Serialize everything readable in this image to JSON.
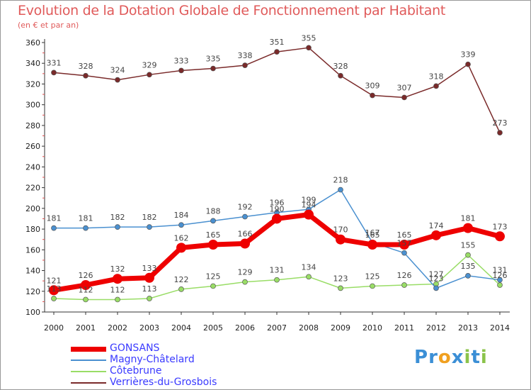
{
  "title": "Evolution de la Dotation Globale de Fonctionnement par Habitant",
  "subtitle": "(en € et par an)",
  "logo": {
    "text": "Proxiti",
    "letters": [
      "P",
      "r",
      "o",
      "x",
      "i",
      "t",
      "i"
    ],
    "colors": [
      "#3b8fd6",
      "#3b8fd6",
      "#f0a020",
      "#3b8fd6",
      "#8bc34a",
      "#3b8fd6",
      "#8bc34a"
    ]
  },
  "chart_data": {
    "type": "line",
    "x": [
      "2000",
      "2001",
      "2002",
      "2003",
      "2004",
      "2005",
      "2006",
      "2007",
      "2008",
      "2009",
      "2010",
      "2011",
      "2012",
      "2013",
      "2014"
    ],
    "ylim": [
      100,
      360
    ],
    "yticks": [
      100,
      120,
      140,
      160,
      180,
      200,
      220,
      240,
      260,
      280,
      300,
      320,
      340,
      360
    ],
    "grid": false,
    "legend_position": "bottom",
    "series": [
      {
        "name": "GONSANS",
        "color": "#ee0000",
        "values": [
          121,
          126,
          132,
          133,
          162,
          165,
          166,
          190,
          194,
          170,
          165,
          165,
          174,
          181,
          173
        ],
        "labels": [
          "121",
          "126",
          "132",
          "133",
          "162",
          "165",
          "166",
          "190",
          "194",
          "170",
          "165",
          "165",
          "174",
          "181",
          "173"
        ]
      },
      {
        "name": "Magny-Châtelard",
        "color": "#4a90d0",
        "values": [
          181,
          181,
          182,
          182,
          184,
          188,
          192,
          196,
          199,
          218,
          167,
          157,
          123,
          135,
          131
        ],
        "labels": [
          "181",
          "181",
          "182",
          "182",
          "184",
          "188",
          "192",
          "196",
          "199",
          "218",
          "167",
          "157",
          "123",
          "135",
          "131"
        ]
      },
      {
        "name": "Côtebrune",
        "color": "#99dd66",
        "values": [
          113,
          112,
          112,
          113,
          122,
          125,
          129,
          131,
          134,
          123,
          125,
          126,
          127,
          155,
          126
        ],
        "labels": [
          "113",
          "112",
          "112",
          "113",
          "122",
          "125",
          "129",
          "131",
          "134",
          "123",
          "125",
          "126",
          "127",
          "155",
          "126"
        ]
      },
      {
        "name": "Verrières-du-Grosbois",
        "color": "#7a2a2a",
        "values": [
          331,
          328,
          324,
          329,
          333,
          335,
          338,
          351,
          355,
          328,
          309,
          307,
          318,
          339,
          273
        ],
        "labels": [
          "331",
          "328",
          "324",
          "329",
          "333",
          "335",
          "338",
          "351",
          "355",
          "328",
          "309",
          "307",
          "318",
          "339",
          "273"
        ]
      }
    ]
  }
}
